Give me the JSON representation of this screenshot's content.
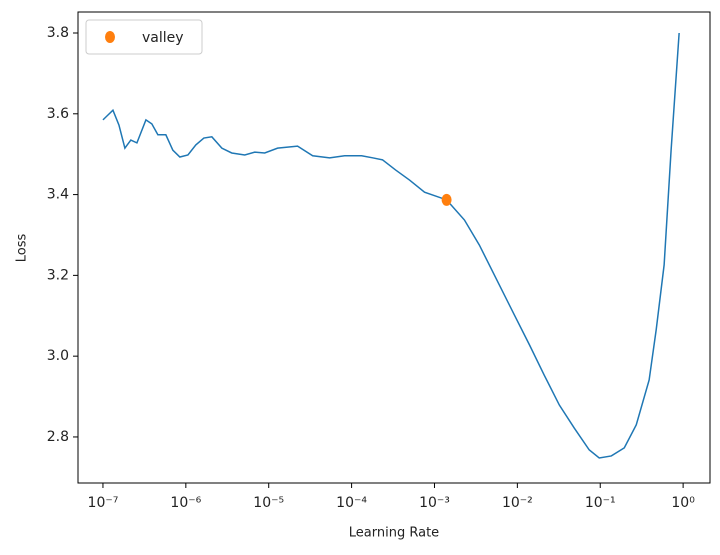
{
  "chart_data": {
    "type": "line",
    "xlabel": "Learning Rate",
    "ylabel": "Loss",
    "xscale": "log",
    "xlim": [
      5e-08,
      2.11
    ],
    "ylim": [
      2.686,
      3.852
    ],
    "xticks": [
      {
        "value": 1e-07,
        "label": "10⁻⁷"
      },
      {
        "value": 1e-06,
        "label": "10⁻⁶"
      },
      {
        "value": 1e-05,
        "label": "10⁻⁵"
      },
      {
        "value": 0.0001,
        "label": "10⁻⁴"
      },
      {
        "value": 0.001,
        "label": "10⁻³"
      },
      {
        "value": 0.01,
        "label": "10⁻²"
      },
      {
        "value": 0.1,
        "label": "10⁻¹"
      },
      {
        "value": 1,
        "label": "10⁰"
      }
    ],
    "yticks": [
      2.8,
      {
        "value": 3,
        "label": "3.0"
      },
      3.2,
      3.4,
      3.6,
      3.8
    ],
    "legend": "upper-left",
    "series": [
      {
        "color": "#1f77b4",
        "x": [
          1e-07,
          1.15e-07,
          1.32e-07,
          1.56e-07,
          1.84e-07,
          2.17e-07,
          2.57e-07,
          3.3e-07,
          3.89e-07,
          4.6e-07,
          5.74e-07,
          6.97e-07,
          8.47e-07,
          1.06e-06,
          1.32e-06,
          1.65e-06,
          2.06e-06,
          2.72e-06,
          3.58e-06,
          5.14e-06,
          6.78e-06,
          8.95e-06,
          1.28e-05,
          2.23e-05,
          3.39e-05,
          5.43e-05,
          8.24e-05,
          0.000132,
          0.000179,
          0.000236,
          0.000339,
          0.0005,
          0.000759,
          0.0014,
          0.0023,
          0.00348,
          0.00607,
          0.0092,
          0.014,
          0.0211,
          0.0321,
          0.0486,
          0.0736,
          0.0972,
          0.136,
          0.195,
          0.272,
          0.389,
          0.473,
          0.59,
          0.716,
          0.895
        ],
        "values": [
          3.585,
          3.597,
          3.609,
          3.572,
          3.515,
          3.535,
          3.528,
          3.585,
          3.575,
          3.548,
          3.548,
          3.51,
          3.493,
          3.498,
          3.523,
          3.54,
          3.543,
          3.515,
          3.503,
          3.498,
          3.505,
          3.503,
          3.515,
          3.52,
          3.496,
          3.491,
          3.496,
          3.496,
          3.491,
          3.486,
          3.461,
          3.436,
          3.406,
          3.387,
          3.337,
          3.275,
          3.176,
          3.102,
          3.028,
          2.953,
          2.879,
          2.822,
          2.768,
          2.748,
          2.753,
          2.773,
          2.83,
          2.941,
          3.065,
          3.226,
          3.51,
          3.8
        ]
      }
    ],
    "markers": [
      {
        "name": "valley",
        "color": "#ff7f0e",
        "x": [
          0.0014
        ],
        "values": [
          3.387
        ]
      }
    ]
  }
}
